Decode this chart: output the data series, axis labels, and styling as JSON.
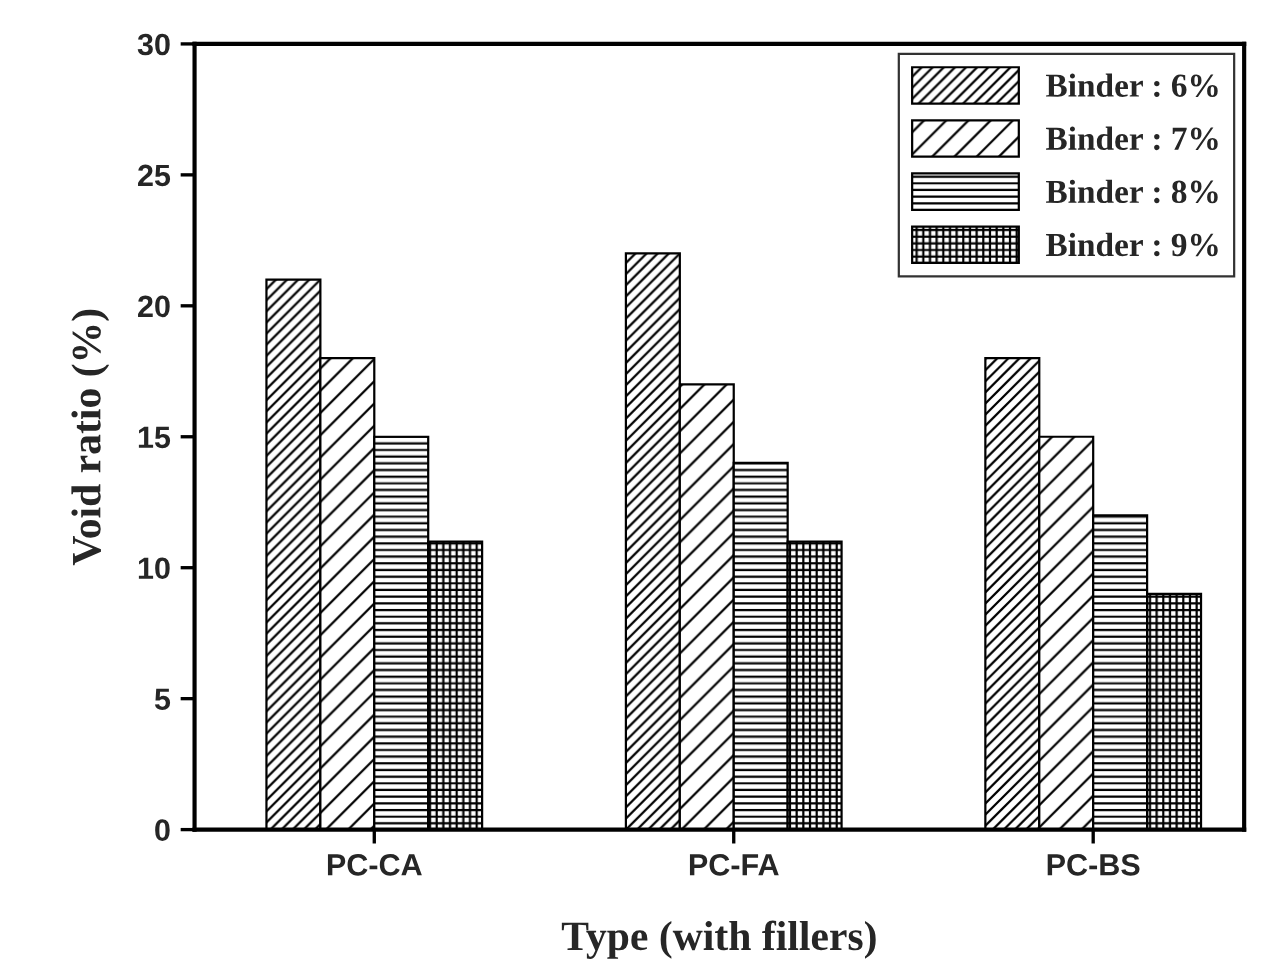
{
  "chart_data": {
    "type": "bar",
    "xlabel": "Type (with fillers)",
    "ylabel": "Void ratio (%)",
    "categories": [
      "PC-CA",
      "PC-FA",
      "PC-BS"
    ],
    "series": [
      {
        "name": "Binder : 6%",
        "color": "#000000",
        "values": [
          21,
          22,
          18
        ]
      },
      {
        "name": "Binder : 7%",
        "color": "#000000",
        "values": [
          18,
          17,
          15
        ]
      },
      {
        "name": "Binder : 8%",
        "color": "#000000",
        "values": [
          15,
          14,
          12
        ]
      },
      {
        "name": "Binder : 9%",
        "color": "#000000",
        "values": [
          11,
          11,
          9
        ]
      }
    ],
    "ylim": [
      0,
      30
    ],
    "yticks": [
      0,
      5,
      10,
      15,
      20,
      25,
      30
    ],
    "grid": false,
    "legend": "top right"
  }
}
